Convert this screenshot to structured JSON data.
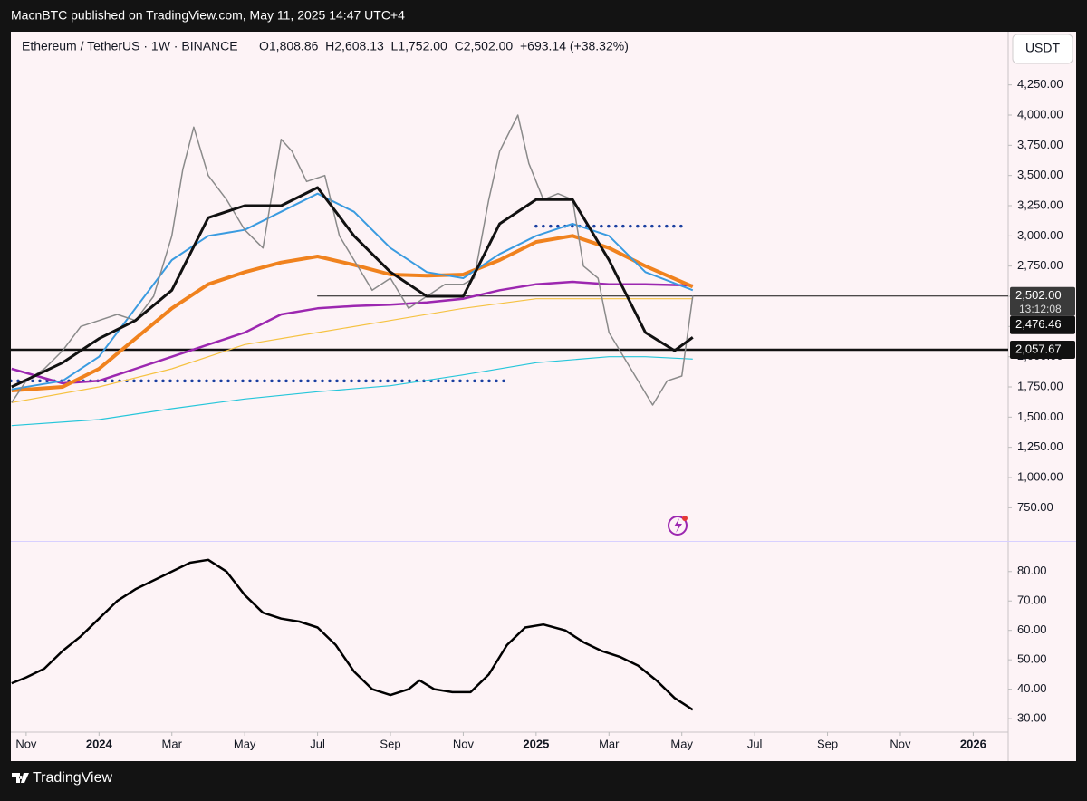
{
  "header": "MacnBTC published on TradingView.com, May 11, 2025 14:47 UTC+4",
  "footer": "TradingView",
  "chart_data": [
    {
      "type": "line",
      "title": "Ethereum / TetherUS · 1W · BINANCE",
      "ohlc_text": "O1,808.86  H2,608.13  L1,752.00  C2,502.00  +693.14 (+38.32%)",
      "currency": "USDT",
      "xlim": [
        0.58,
        27.96
      ],
      "ylim": [
        475,
        4690
      ],
      "yticks": [
        {
          "value": 750,
          "label": "750.00"
        },
        {
          "value": 1000,
          "label": "1,000.00"
        },
        {
          "value": 1250,
          "label": "1,250.00"
        },
        {
          "value": 1500,
          "label": "1,500.00"
        },
        {
          "value": 1750,
          "label": "1,750.00"
        },
        {
          "value": 2000,
          "label": "2,000.00"
        },
        {
          "value": 2250,
          "label": "2,250.00"
        },
        {
          "value": 2500,
          "label": "2,500.00"
        },
        {
          "value": 2750,
          "label": "2,750.00"
        },
        {
          "value": 3000,
          "label": "3,000.00"
        },
        {
          "value": 3250,
          "label": "3,250.00"
        },
        {
          "value": 3500,
          "label": "3,500.00"
        },
        {
          "value": 3750,
          "label": "3,750.00"
        },
        {
          "value": 4000,
          "label": "4,000.00"
        },
        {
          "value": 4250,
          "label": "4,250.00"
        }
      ],
      "series": [
        {
          "color": "#26c6da",
          "width": 1.2,
          "x": [
            0.6,
            3,
            5,
            7,
            9,
            11,
            13,
            15,
            17,
            18,
            19.3
          ],
          "values": [
            1430,
            1480,
            1570,
            1650,
            1710,
            1760,
            1850,
            1950,
            2000,
            2000,
            1980
          ]
        },
        {
          "color": "#f5c242",
          "width": 1.2,
          "x": [
            0.6,
            3,
            5,
            7,
            9,
            11,
            13,
            15,
            17,
            19.3
          ],
          "values": [
            1620,
            1750,
            1900,
            2100,
            2200,
            2300,
            2400,
            2480,
            2480,
            2480
          ]
        },
        {
          "color": "#9c27b0",
          "width": 2.5,
          "x": [
            0.6,
            2,
            3,
            4,
            5,
            6,
            7,
            8,
            9,
            10,
            11,
            12,
            13,
            14,
            15,
            16,
            17,
            18,
            19.3
          ],
          "values": [
            1900,
            1780,
            1800,
            1900,
            2000,
            2100,
            2200,
            2350,
            2400,
            2420,
            2430,
            2450,
            2480,
            2550,
            2600,
            2620,
            2600,
            2600,
            2590
          ]
        },
        {
          "color": "#f0821e",
          "width": 4,
          "x": [
            0.6,
            2,
            3,
            4,
            5,
            6,
            7,
            8,
            9,
            10,
            11,
            12,
            13,
            14,
            15,
            16,
            17,
            18,
            19.3
          ],
          "values": [
            1720,
            1750,
            1900,
            2150,
            2400,
            2600,
            2700,
            2780,
            2830,
            2760,
            2680,
            2670,
            2680,
            2800,
            2950,
            3000,
            2900,
            2750,
            2580
          ]
        },
        {
          "color": "#3a9be0",
          "width": 2,
          "x": [
            0.6,
            2,
            3,
            4,
            5,
            6,
            7,
            8,
            9,
            10,
            11,
            12,
            13,
            14,
            15,
            16,
            17,
            18,
            19.3
          ],
          "values": [
            1730,
            1800,
            2000,
            2400,
            2800,
            3000,
            3050,
            3200,
            3350,
            3200,
            2900,
            2700,
            2650,
            2850,
            3000,
            3100,
            3000,
            2700,
            2550
          ]
        },
        {
          "color": "#8a8a8a",
          "width": 1.5,
          "x": [
            0.6,
            1.0,
            1.5,
            2.0,
            2.5,
            3.0,
            3.5,
            4.0,
            4.5,
            5.0,
            5.3,
            5.6,
            6.0,
            6.5,
            7.0,
            7.5,
            8.0,
            8.3,
            8.7,
            9.2,
            9.6,
            10.0,
            10.5,
            11.0,
            11.5,
            12.0,
            12.5,
            13.0,
            13.3,
            13.7,
            14.0,
            14.5,
            14.8,
            15.2,
            15.6,
            16.0,
            16.3,
            16.7,
            17.0,
            17.4,
            17.8,
            18.2,
            18.6,
            19.0,
            19.3
          ],
          "values": [
            1620,
            1800,
            1900,
            2050,
            2250,
            2300,
            2350,
            2300,
            2500,
            3000,
            3550,
            3900,
            3500,
            3300,
            3050,
            2900,
            3800,
            3700,
            3450,
            3500,
            3000,
            2800,
            2550,
            2650,
            2400,
            2500,
            2600,
            2600,
            2650,
            3300,
            3700,
            4000,
            3600,
            3300,
            3350,
            3300,
            2750,
            2650,
            2200,
            2000,
            1800,
            1600,
            1800,
            1840,
            2502
          ]
        },
        {
          "color": "#111111",
          "width": 3,
          "x": [
            0.6,
            2,
            3,
            4,
            5,
            6,
            7,
            8,
            9,
            10,
            11,
            12,
            13,
            14,
            15,
            16,
            17,
            18,
            18.8,
            19.3
          ],
          "values": [
            1750,
            1950,
            2150,
            2300,
            2550,
            3150,
            3250,
            3250,
            3400,
            3000,
            2700,
            2500,
            2500,
            3100,
            3300,
            3300,
            2800,
            2200,
            2050,
            2160
          ]
        }
      ],
      "hlines": [
        {
          "value": 1800,
          "x": [
            0.58,
            14.2
          ],
          "color": "#1a3fa0",
          "dotted": true
        },
        {
          "value": 3080,
          "x": [
            15.0,
            19.0
          ],
          "color": "#1a3fa0",
          "dotted": true
        },
        {
          "value": 2502,
          "x": [
            9.0,
            27.96
          ],
          "color": "#111111",
          "dotted": false
        },
        {
          "value": 2057.67,
          "x": [
            0.58,
            27.96
          ],
          "color": "#111111",
          "dotted": false
        }
      ],
      "price_labels": [
        {
          "value": 2502,
          "label": "2,502.00"
        },
        {
          "value": 2476.46,
          "label": "2,476.46"
        },
        {
          "value": 2057.67,
          "label": "2,057.67"
        }
      ],
      "countdown": "13:12:08"
    },
    {
      "type": "line",
      "xlim": [
        0.58,
        27.96
      ],
      "xticks": [
        {
          "value": 1,
          "label": "Nov"
        },
        {
          "value": 3,
          "label": "2024"
        },
        {
          "value": 5,
          "label": "Mar"
        },
        {
          "value": 7,
          "label": "May"
        },
        {
          "value": 9,
          "label": "Jul"
        },
        {
          "value": 11,
          "label": "Sep"
        },
        {
          "value": 13,
          "label": "Nov"
        },
        {
          "value": 15,
          "label": "2025"
        },
        {
          "value": 17,
          "label": "Mar"
        },
        {
          "value": 19,
          "label": "May"
        },
        {
          "value": 21,
          "label": "Jul"
        },
        {
          "value": 23,
          "label": "Sep"
        },
        {
          "value": 25,
          "label": "Nov"
        },
        {
          "value": 27,
          "label": "2026"
        }
      ],
      "ylim": [
        25.4,
        90.1
      ],
      "yticks": [
        {
          "value": 30,
          "label": "30.00"
        },
        {
          "value": 40,
          "label": "40.00"
        },
        {
          "value": 50,
          "label": "50.00"
        },
        {
          "value": 60,
          "label": "60.00"
        },
        {
          "value": 70,
          "label": "70.00"
        },
        {
          "value": 80,
          "label": "80.00"
        }
      ],
      "series": [
        {
          "color": "#000000",
          "width": 2.5,
          "x": [
            0.6,
            1,
            1.5,
            2,
            2.5,
            3,
            3.5,
            4,
            4.5,
            5,
            5.5,
            6,
            6.5,
            7,
            7.5,
            8,
            8.5,
            9,
            9.5,
            10,
            10.5,
            11,
            11.5,
            11.8,
            12.2,
            12.7,
            13.2,
            13.7,
            14.2,
            14.7,
            15.2,
            15.8,
            16.3,
            16.8,
            17.3,
            17.8,
            18.3,
            18.8,
            19.3
          ],
          "values": [
            42,
            44,
            47,
            53,
            58,
            64,
            70,
            74,
            77,
            80,
            83,
            84,
            80,
            72,
            66,
            64,
            63,
            61,
            55,
            46,
            40,
            38,
            40,
            43,
            40,
            39,
            39,
            45,
            55,
            61,
            62,
            60,
            56,
            53,
            51,
            48,
            43,
            37,
            33
          ]
        }
      ]
    }
  ]
}
